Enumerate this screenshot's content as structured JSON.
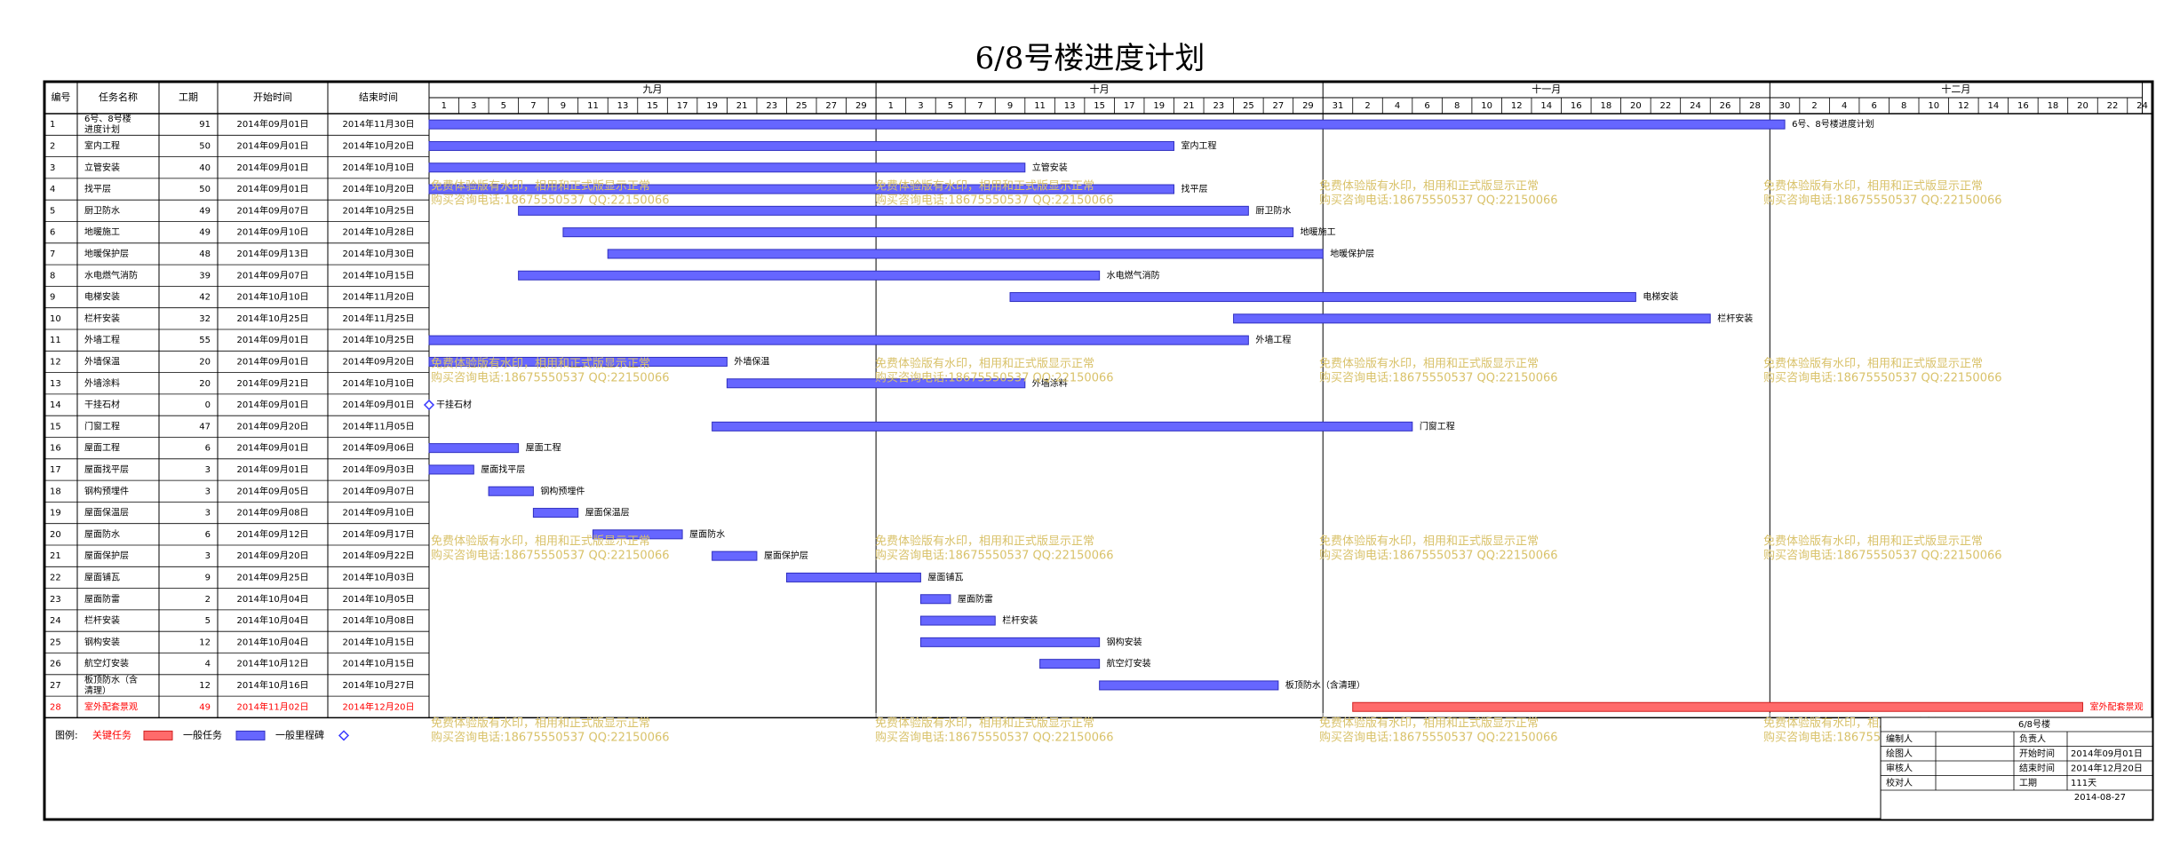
{
  "title": "6/8号楼进度计划",
  "header": {
    "id": "编号",
    "name": "任务名称",
    "duration": "工期",
    "start": "开始时间",
    "end": "结束时间"
  },
  "months": [
    {
      "label": "九月",
      "days": [
        "1",
        "3",
        "5",
        "7",
        "9",
        "11",
        "13",
        "15",
        "17",
        "19",
        "21",
        "23",
        "25",
        "27",
        "29"
      ]
    },
    {
      "label": "十月",
      "days": [
        "1",
        "3",
        "5",
        "7",
        "9",
        "11",
        "13",
        "15",
        "17",
        "19",
        "21",
        "23",
        "25",
        "27",
        "29"
      ]
    },
    {
      "label": "十一月",
      "days": [
        "31",
        "2",
        "4",
        "6",
        "8",
        "10",
        "12",
        "14",
        "16",
        "18",
        "20",
        "22",
        "24",
        "26",
        "28"
      ]
    },
    {
      "label": "十二月",
      "days": [
        "30",
        "2",
        "4",
        "6",
        "8",
        "10",
        "12",
        "14",
        "16",
        "18",
        "20",
        "22",
        "24"
      ]
    }
  ],
  "chart_data": {
    "type": "gantt",
    "timeline_start": "2014-09-01",
    "timeline_end": "2014-12-24",
    "tasks": [
      {
        "id": "1",
        "name": "6号、8号楼进度计划",
        "duration": 91,
        "start": "2014年09月01日",
        "end": "2014年11月30日",
        "bar_label": "6号、8号楼进度计划",
        "type": "normal"
      },
      {
        "id": "2",
        "name": "室内工程",
        "duration": 50,
        "start": "2014年09月01日",
        "end": "2014年10月20日",
        "bar_label": "室内工程",
        "type": "normal"
      },
      {
        "id": "3",
        "name": "立管安装",
        "duration": 40,
        "start": "2014年09月01日",
        "end": "2014年10月10日",
        "bar_label": "立管安装",
        "type": "normal"
      },
      {
        "id": "4",
        "name": "找平层",
        "duration": 50,
        "start": "2014年09月01日",
        "end": "2014年10月20日",
        "bar_label": "找平层",
        "type": "normal"
      },
      {
        "id": "5",
        "name": "厨卫防水",
        "duration": 49,
        "start": "2014年09月07日",
        "end": "2014年10月25日",
        "bar_label": "厨卫防水",
        "type": "normal"
      },
      {
        "id": "6",
        "name": "地暖施工",
        "duration": 49,
        "start": "2014年09月10日",
        "end": "2014年10月28日",
        "bar_label": "地暖施工",
        "type": "normal"
      },
      {
        "id": "7",
        "name": "地暖保护层",
        "duration": 48,
        "start": "2014年09月13日",
        "end": "2014年10月30日",
        "bar_label": "地暖保护层",
        "type": "normal"
      },
      {
        "id": "8",
        "name": "水电燃气消防",
        "duration": 39,
        "start": "2014年09月07日",
        "end": "2014年10月15日",
        "bar_label": "水电燃气消防",
        "type": "normal"
      },
      {
        "id": "9",
        "name": "电梯安装",
        "duration": 42,
        "start": "2014年10月10日",
        "end": "2014年11月20日",
        "bar_label": "电梯安装",
        "type": "normal"
      },
      {
        "id": "10",
        "name": "栏杆安装",
        "duration": 32,
        "start": "2014年10月25日",
        "end": "2014年11月25日",
        "bar_label": "栏杆安装",
        "type": "normal"
      },
      {
        "id": "11",
        "name": "外墙工程",
        "duration": 55,
        "start": "2014年09月01日",
        "end": "2014年10月25日",
        "bar_label": "外墙工程",
        "type": "normal"
      },
      {
        "id": "12",
        "name": "外墙保温",
        "duration": 20,
        "start": "2014年09月01日",
        "end": "2014年09月20日",
        "bar_label": "外墙保温",
        "type": "normal"
      },
      {
        "id": "13",
        "name": "外墙涂料",
        "duration": 20,
        "start": "2014年09月21日",
        "end": "2014年10月10日",
        "bar_label": "外墙涂料",
        "type": "normal"
      },
      {
        "id": "14",
        "name": "干挂石材",
        "duration": 0,
        "start": "2014年09月01日",
        "end": "2014年09月01日",
        "bar_label": "干挂石材",
        "type": "milestone"
      },
      {
        "id": "15",
        "name": "门窗工程",
        "duration": 47,
        "start": "2014年09月20日",
        "end": "2014年11月05日",
        "bar_label": "门窗工程",
        "type": "normal"
      },
      {
        "id": "16",
        "name": "屋面工程",
        "duration": 6,
        "start": "2014年09月01日",
        "end": "2014年09月06日",
        "bar_label": "屋面工程",
        "type": "normal"
      },
      {
        "id": "17",
        "name": "屋面找平层",
        "duration": 3,
        "start": "2014年09月01日",
        "end": "2014年09月03日",
        "bar_label": "屋面找平层",
        "type": "normal"
      },
      {
        "id": "18",
        "name": "钢构预埋件",
        "duration": 3,
        "start": "2014年09月05日",
        "end": "2014年09月07日",
        "bar_label": "钢构预埋件",
        "type": "normal"
      },
      {
        "id": "19",
        "name": "屋面保温层",
        "duration": 3,
        "start": "2014年09月08日",
        "end": "2014年09月10日",
        "bar_label": "屋面保温层",
        "type": "normal"
      },
      {
        "id": "20",
        "name": "屋面防水",
        "duration": 6,
        "start": "2014年09月12日",
        "end": "2014年09月17日",
        "bar_label": "屋面防水",
        "type": "normal"
      },
      {
        "id": "21",
        "name": "屋面保护层",
        "duration": 3,
        "start": "2014年09月20日",
        "end": "2014年09月22日",
        "bar_label": "屋面保护层",
        "type": "normal"
      },
      {
        "id": "22",
        "name": "屋面铺瓦",
        "duration": 9,
        "start": "2014年09月25日",
        "end": "2014年10月03日",
        "bar_label": "屋面铺瓦",
        "type": "normal"
      },
      {
        "id": "23",
        "name": "屋面防雷",
        "duration": 2,
        "start": "2014年10月04日",
        "end": "2014年10月05日",
        "bar_label": "屋面防雷",
        "type": "normal"
      },
      {
        "id": "24",
        "name": "栏杆安装",
        "duration": 5,
        "start": "2014年10月04日",
        "end": "2014年10月08日",
        "bar_label": "栏杆安装",
        "type": "normal"
      },
      {
        "id": "25",
        "name": "钢构安装",
        "duration": 12,
        "start": "2014年10月04日",
        "end": "2014年10月15日",
        "bar_label": "钢构安装",
        "type": "normal"
      },
      {
        "id": "26",
        "name": "航空灯安装",
        "duration": 4,
        "start": "2014年10月12日",
        "end": "2014年10月15日",
        "bar_label": "航空灯安装",
        "type": "normal"
      },
      {
        "id": "27",
        "name": "板顶防水（含清理）",
        "duration": 12,
        "start": "2014年10月16日",
        "end": "2014年10月27日",
        "bar_label": "板顶防水（含清理）",
        "type": "normal"
      },
      {
        "id": "28",
        "name": "室外配套景观",
        "duration": 49,
        "start": "2014年11月02日",
        "end": "2014年12月20日",
        "bar_label": "室外配套景观",
        "type": "critical"
      }
    ]
  },
  "legend": {
    "label": "图例:",
    "critical": "关键任务",
    "normal": "一般任务",
    "milestone": "一般里程碑"
  },
  "watermark": {
    "line1": "免费体验版有水印，相用和正式版显示正常",
    "line2": "购买咨询电话:18675550537 QQ:22150066"
  },
  "titleblock": {
    "project": "6/8号楼",
    "rows": [
      [
        "编制人",
        "",
        "负责人",
        ""
      ],
      [
        "绘图人",
        "",
        "开始时间",
        "2014年09月01日"
      ],
      [
        "审核人",
        "",
        "结束时间",
        "2014年12月20日"
      ],
      [
        "校对人",
        "",
        "工期",
        "111天"
      ]
    ],
    "date": "2014-08-27"
  },
  "colors": {
    "bar": "#6666ff",
    "bar_border": "#3030c0",
    "critical": "#ff6b6b",
    "critical_border": "#d02020",
    "critical_text": "#ff0000",
    "grid": "#c0c0c0",
    "watermark": "#d9c26a",
    "milestone": "#3a3aff"
  }
}
